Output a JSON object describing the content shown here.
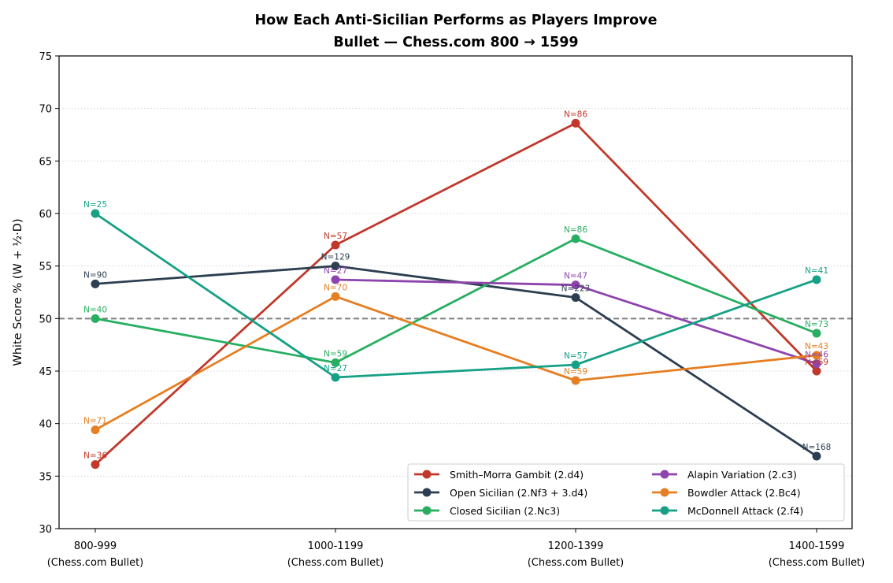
{
  "chart_data": {
    "type": "line",
    "title": "How Each Anti-Sicilian Performs as Players Improve",
    "subtitle": "Bullet — Chess.com 800 → 1599",
    "xlabel": "",
    "ylabel": "White Score % (W + ½·D)",
    "ylim": [
      30,
      75
    ],
    "yticks": [
      30,
      35,
      40,
      45,
      50,
      55,
      60,
      65,
      70,
      75
    ],
    "grid": "horizontal dotted",
    "reference_line": 50,
    "legend_position": "lower-right",
    "categories": [
      {
        "line1": "800-999",
        "line2": "(Chess.com Bullet)"
      },
      {
        "line1": "1000-1199",
        "line2": "(Chess.com Bullet)"
      },
      {
        "line1": "1200-1399",
        "line2": "(Chess.com Bullet)"
      },
      {
        "line1": "1400-1599",
        "line2": "(Chess.com Bullet)"
      }
    ],
    "series": [
      {
        "name": "Smith–Morra Gambit (2.d4)",
        "color": "#c0392b",
        "values": [
          36.1,
          57.0,
          68.6,
          45.0
        ],
        "n": [
          "N=36",
          "N=57",
          "N=86",
          "N=69"
        ]
      },
      {
        "name": "Open Sicilian (2.Nf3 + 3.d4)",
        "color": "#2c3e50",
        "values": [
          53.3,
          55.0,
          52.0,
          36.9
        ],
        "n": [
          "N=90",
          "N=129",
          "N=223",
          "N=168"
        ]
      },
      {
        "name": "Closed Sicilian (2.Nc3)",
        "color": "#27ae60",
        "values": [
          50.0,
          45.8,
          57.6,
          48.6
        ],
        "n": [
          "N=40",
          "N=59",
          "N=86",
          "N=73"
        ]
      },
      {
        "name": "Alapin Variation (2.c3)",
        "color": "#8e44ad",
        "values": [
          null,
          53.7,
          53.2,
          45.7
        ],
        "n": [
          null,
          "N=27",
          "N=47",
          "N=46"
        ]
      },
      {
        "name": "Bowdler Attack (2.Bc4)",
        "color": "#e67e22",
        "values": [
          39.4,
          52.1,
          44.1,
          46.5
        ],
        "n": [
          "N=71",
          "N=70",
          "N=59",
          "N=43"
        ]
      },
      {
        "name": "McDonnell Attack (2.f4)",
        "color": "#16a085",
        "values": [
          60.0,
          44.4,
          45.6,
          53.7
        ],
        "n": [
          "N=25",
          "N=27",
          "N=57",
          "N=41"
        ]
      }
    ]
  }
}
